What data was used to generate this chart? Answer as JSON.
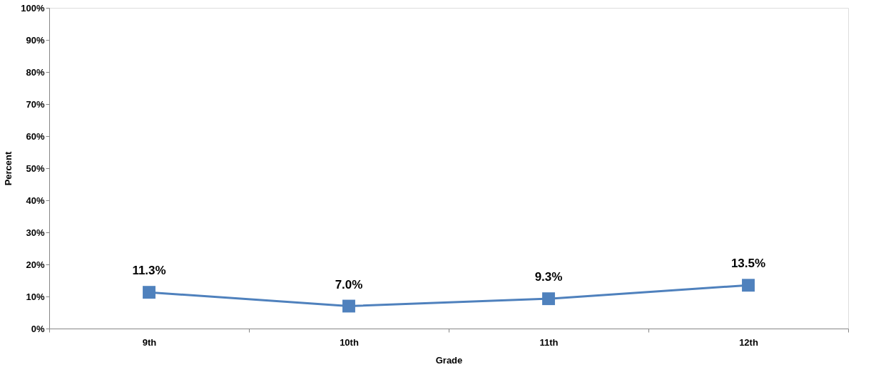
{
  "chart_data": {
    "type": "line",
    "xlabel": "Grade",
    "ylabel": "Percent",
    "categories": [
      "9th",
      "10th",
      "11th",
      "12th"
    ],
    "series": [
      {
        "color": "#4f81bd",
        "values": [
          11.3,
          7.0,
          9.3,
          13.5
        ],
        "value_labels": [
          "11.3%",
          "7.0%",
          "9.3%",
          "13.5%"
        ]
      }
    ],
    "ylim": [
      0,
      100
    ],
    "yticks": [
      {
        "value": 0,
        "label": "0%"
      },
      {
        "value": 10,
        "label": "10%"
      },
      {
        "value": 20,
        "label": "20%"
      },
      {
        "value": 30,
        "label": "30%"
      },
      {
        "value": 40,
        "label": "40%"
      },
      {
        "value": 50,
        "label": "50%"
      },
      {
        "value": 60,
        "label": "60%"
      },
      {
        "value": 70,
        "label": "70%"
      },
      {
        "value": 80,
        "label": "80%"
      },
      {
        "value": 90,
        "label": "90%"
      },
      {
        "value": 100,
        "label": "100%"
      }
    ],
    "marker": "square",
    "grid": false,
    "legend": false
  }
}
